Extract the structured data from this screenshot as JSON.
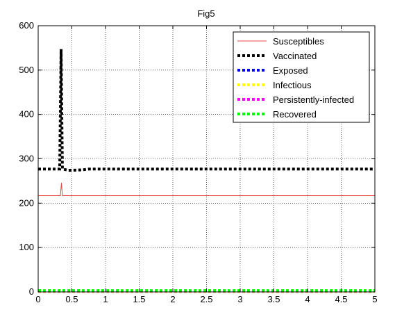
{
  "chart_data": {
    "type": "line",
    "title": "Fig5",
    "xlabel": "",
    "ylabel": "",
    "xlim": [
      0,
      5
    ],
    "ylim": [
      0,
      600
    ],
    "xticks": [
      "0",
      "0.5",
      "1",
      "1.5",
      "2",
      "2.5",
      "3",
      "3.5",
      "4",
      "4.5",
      "5"
    ],
    "xtick_values": [
      0,
      0.5,
      1,
      1.5,
      2,
      2.5,
      3,
      3.5,
      4,
      4.5,
      5
    ],
    "yticks": [
      "0",
      "100",
      "200",
      "300",
      "400",
      "500",
      "600"
    ],
    "ytick_values": [
      0,
      100,
      200,
      300,
      400,
      500,
      600
    ],
    "grid": true,
    "legend_position": "top-right",
    "series": [
      {
        "name": "Susceptibles",
        "color": "#e8433f",
        "style": "solid",
        "points": [
          [
            0,
            217
          ],
          [
            0.33,
            217
          ],
          [
            0.345,
            246
          ],
          [
            0.36,
            217
          ],
          [
            5,
            217
          ]
        ]
      },
      {
        "name": "Vaccinated",
        "color": "#000000",
        "style": "dotted",
        "points": [
          [
            0,
            277
          ],
          [
            0.32,
            277
          ],
          [
            0.34,
            547
          ],
          [
            0.36,
            277
          ],
          [
            0.45,
            274
          ],
          [
            0.65,
            275
          ],
          [
            0.75,
            277
          ],
          [
            5,
            277
          ]
        ]
      },
      {
        "name": "Exposed",
        "color": "#0000ff",
        "style": "dotted",
        "points": [
          [
            0,
            1
          ],
          [
            5,
            1
          ]
        ]
      },
      {
        "name": "Infectious",
        "color": "#ffff00",
        "style": "dotted",
        "points": [
          [
            0,
            1
          ],
          [
            5,
            1
          ]
        ]
      },
      {
        "name": "Persistently-infected",
        "color": "#ff00ff",
        "style": "dotted",
        "points": [
          [
            0,
            2
          ],
          [
            5,
            2
          ]
        ]
      },
      {
        "name": "Recovered",
        "color": "#00ff00",
        "style": "dotted",
        "points": [
          [
            0,
            3
          ],
          [
            5,
            3
          ]
        ]
      }
    ]
  }
}
